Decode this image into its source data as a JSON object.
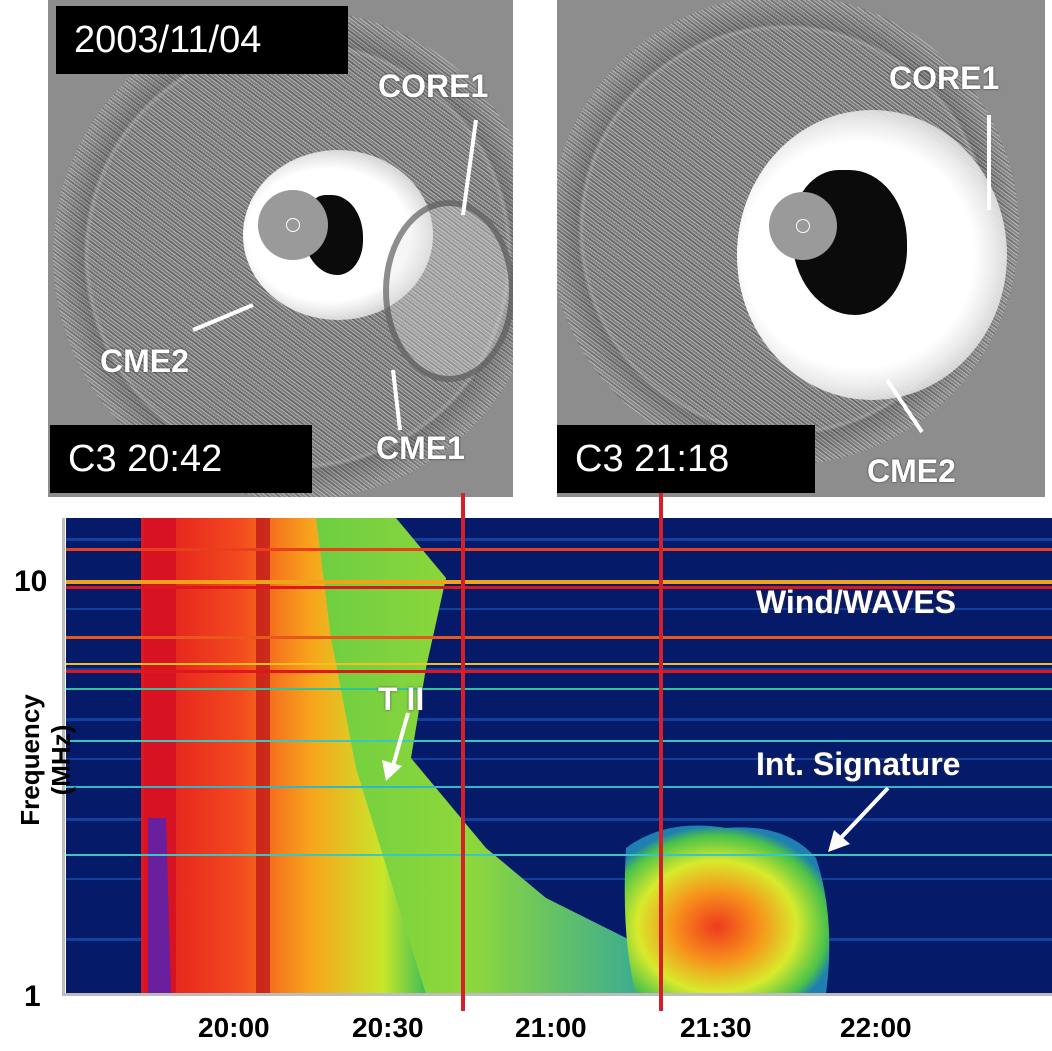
{
  "date_label": "2003/11/04",
  "panels": {
    "left": {
      "time_label": "C3 20:42",
      "features": [
        "CORE1",
        "CME2",
        "CME1"
      ]
    },
    "right": {
      "time_label": "C3 21:18",
      "features": [
        "CORE1",
        "CME2"
      ]
    }
  },
  "spectrogram": {
    "instrument_label": "Wind/WAVES",
    "annotations": [
      "T II",
      "Int. Signature"
    ],
    "y_axis_label": "Frequency (MHz)",
    "y_ticks": [
      "10",
      "1"
    ],
    "x_ticks": [
      "20:00",
      "20:30",
      "21:00",
      "21:30",
      "22:00"
    ]
  },
  "colors": {
    "marker_line": "#d3202a",
    "background_low": "#061a6a",
    "burst_high": "#e0161f"
  }
}
